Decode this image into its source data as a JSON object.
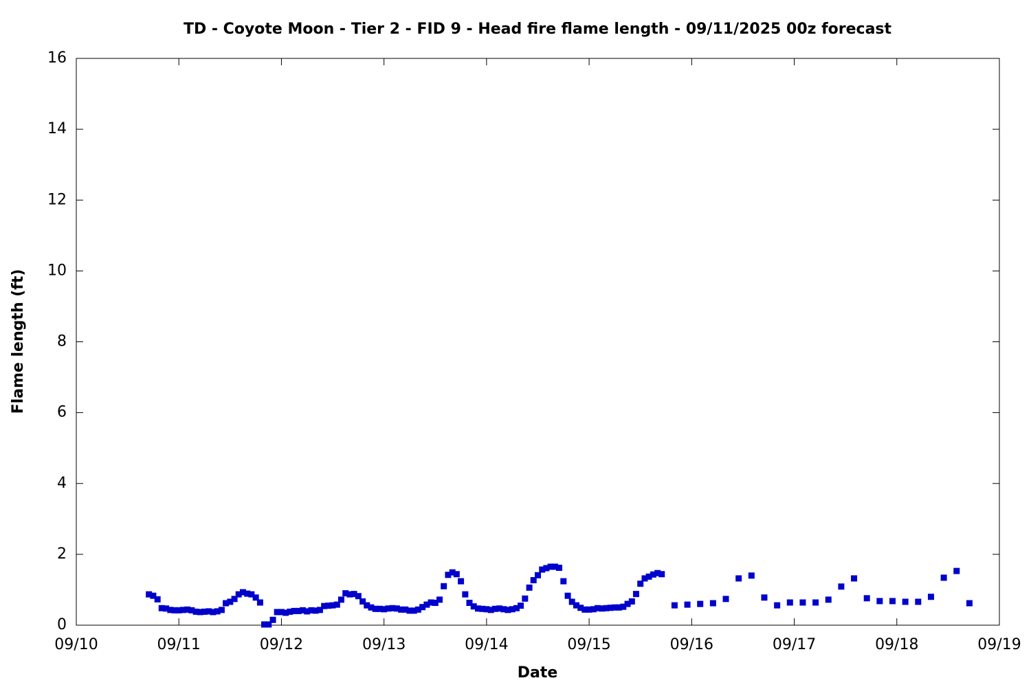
{
  "chart_data": {
    "type": "scatter",
    "title": "TD - Coyote Moon - Tier 2 - FID 9 - Head fire flame length - 09/11/2025 00z forecast",
    "xlabel": "Date",
    "ylabel": "Flame length (ft)",
    "xlim": [
      10,
      19
    ],
    "xticks": [
      {
        "value": 10,
        "label": "09/10"
      },
      {
        "value": 11,
        "label": "09/11"
      },
      {
        "value": 12,
        "label": "09/12"
      },
      {
        "value": 13,
        "label": "09/13"
      },
      {
        "value": 14,
        "label": "09/14"
      },
      {
        "value": 15,
        "label": "09/15"
      },
      {
        "value": 16,
        "label": "09/16"
      },
      {
        "value": 17,
        "label": "09/17"
      },
      {
        "value": 18,
        "label": "09/18"
      },
      {
        "value": 19,
        "label": "09/19"
      }
    ],
    "ylim": [
      0,
      16
    ],
    "yticks": [
      0,
      2,
      4,
      6,
      8,
      10,
      12,
      14,
      16
    ],
    "grid": false,
    "series": [
      {
        "color": "#0000cc",
        "x": [
          10.708,
          10.75,
          10.792,
          10.833,
          10.875,
          10.917,
          10.958,
          11,
          11.042,
          11.083,
          11.125,
          11.167,
          11.208,
          11.25,
          11.292,
          11.333,
          11.375,
          11.417,
          11.458,
          11.5,
          11.542,
          11.583,
          11.625,
          11.667,
          11.708,
          11.75,
          11.792,
          11.833,
          11.875,
          11.917,
          11.958,
          12,
          12.042,
          12.083,
          12.125,
          12.167,
          12.208,
          12.25,
          12.292,
          12.333,
          12.375,
          12.417,
          12.458,
          12.5,
          12.542,
          12.583,
          12.625,
          12.667,
          12.708,
          12.75,
          12.792,
          12.833,
          12.875,
          12.917,
          12.958,
          13,
          13.042,
          13.083,
          13.125,
          13.167,
          13.208,
          13.25,
          13.292,
          13.333,
          13.375,
          13.417,
          13.458,
          13.5,
          13.542,
          13.583,
          13.625,
          13.667,
          13.708,
          13.75,
          13.792,
          13.833,
          13.875,
          13.917,
          13.958,
          14,
          14.042,
          14.083,
          14.125,
          14.167,
          14.208,
          14.25,
          14.292,
          14.333,
          14.375,
          14.417,
          14.458,
          14.5,
          14.542,
          14.583,
          14.625,
          14.667,
          14.708,
          14.75,
          14.792,
          14.833,
          14.875,
          14.917,
          14.958,
          15,
          15.042,
          15.083,
          15.125,
          15.167,
          15.208,
          15.25,
          15.292,
          15.333,
          15.375,
          15.417,
          15.458,
          15.5,
          15.542,
          15.583,
          15.625,
          15.667,
          15.708,
          15.833,
          15.958,
          16.083,
          16.208,
          16.333,
          16.458,
          16.583,
          16.708,
          16.833,
          16.958,
          17.083,
          17.208,
          17.333,
          17.458,
          17.583,
          17.708,
          17.833,
          17.958,
          18.083,
          18.208,
          18.333,
          18.458,
          18.583,
          18.708
        ],
        "values": [
          0.87,
          0.83,
          0.73,
          0.48,
          0.47,
          0.43,
          0.42,
          0.42,
          0.43,
          0.44,
          0.42,
          0.38,
          0.37,
          0.38,
          0.39,
          0.37,
          0.39,
          0.43,
          0.62,
          0.66,
          0.74,
          0.87,
          0.93,
          0.89,
          0.87,
          0.78,
          0.64,
          0.02,
          0.02,
          0.15,
          0.37,
          0.37,
          0.35,
          0.38,
          0.4,
          0.4,
          0.42,
          0.39,
          0.42,
          0.41,
          0.43,
          0.54,
          0.55,
          0.56,
          0.58,
          0.72,
          0.9,
          0.87,
          0.88,
          0.82,
          0.67,
          0.56,
          0.5,
          0.46,
          0.46,
          0.45,
          0.47,
          0.48,
          0.47,
          0.44,
          0.44,
          0.41,
          0.41,
          0.44,
          0.51,
          0.58,
          0.64,
          0.63,
          0.72,
          1.1,
          1.42,
          1.49,
          1.44,
          1.24,
          0.87,
          0.63,
          0.53,
          0.47,
          0.46,
          0.45,
          0.43,
          0.46,
          0.47,
          0.45,
          0.43,
          0.45,
          0.48,
          0.55,
          0.75,
          1.06,
          1.27,
          1.41,
          1.57,
          1.61,
          1.65,
          1.65,
          1.62,
          1.24,
          0.83,
          0.66,
          0.56,
          0.49,
          0.44,
          0.44,
          0.45,
          0.48,
          0.47,
          0.48,
          0.49,
          0.5,
          0.5,
          0.52,
          0.6,
          0.67,
          0.88,
          1.17,
          1.32,
          1.37,
          1.43,
          1.47,
          1.44,
          0.56,
          0.58,
          0.6,
          0.62,
          0.74,
          1.32,
          1.4,
          0.78,
          0.56,
          0.64,
          0.64,
          0.64,
          0.72,
          1.09,
          1.32,
          0.76,
          0.68,
          0.68,
          0.66,
          0.66,
          0.8,
          1.34,
          1.53,
          0.62
        ]
      }
    ]
  }
}
